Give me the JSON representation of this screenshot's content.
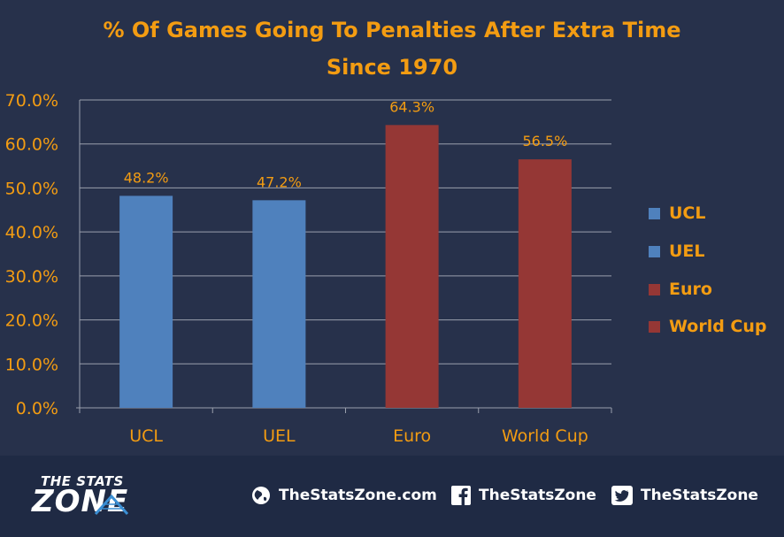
{
  "chart_data": {
    "type": "bar",
    "title": "% Of Games Going To Penalties After Extra Time",
    "subtitle": "Since 1970",
    "categories": [
      "UCL",
      "UEL",
      "Euro",
      "World Cup"
    ],
    "values": [
      48.2,
      47.2,
      64.3,
      56.5
    ],
    "value_labels": [
      "48.2%",
      "47.2%",
      "64.3%",
      "56.5%"
    ],
    "colors": [
      "#4f81bd",
      "#4f81bd",
      "#953735",
      "#953735"
    ],
    "ylim": [
      0,
      70
    ],
    "yticks": [
      "0.0%",
      "10.0%",
      "20.0%",
      "30.0%",
      "40.0%",
      "50.0%",
      "60.0%",
      "70.0%"
    ],
    "grid": true,
    "legend_position": "right",
    "legend": [
      {
        "label": "UCL",
        "color": "#4f81bd"
      },
      {
        "label": "UEL",
        "color": "#4f81bd"
      },
      {
        "label": "Euro",
        "color": "#953735"
      },
      {
        "label": "World Cup",
        "color": "#953735"
      }
    ],
    "text_color": "#f39c12"
  },
  "footer": {
    "logo_top": "THE STATS",
    "logo_main": "ZONE",
    "website": "TheStatsZone.com",
    "facebook": "TheStatsZone",
    "twitter": "TheStatsZone",
    "icons": [
      "globe-icon",
      "facebook-icon",
      "twitter-icon"
    ]
  }
}
